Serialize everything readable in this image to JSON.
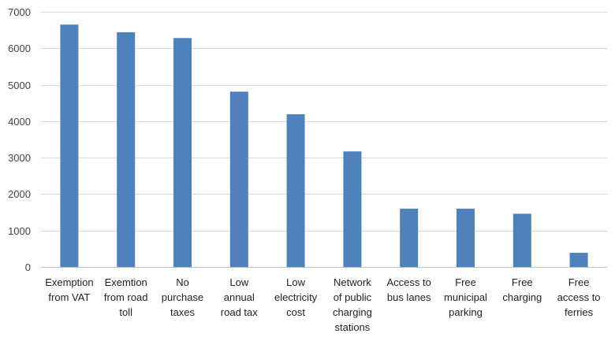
{
  "chart_data": {
    "type": "bar",
    "title": "",
    "xlabel": "",
    "ylabel": "",
    "ylim": [
      0,
      7000
    ],
    "yticks": [
      0,
      1000,
      2000,
      3000,
      4000,
      5000,
      6000,
      7000
    ],
    "grid": true,
    "bar_color": "#4f81bd",
    "categories": [
      [
        "Exemption",
        "from VAT"
      ],
      [
        "Exemtion",
        "from road",
        "toll"
      ],
      [
        "No",
        "purchase",
        "taxes"
      ],
      [
        "Low",
        "annual",
        "road tax"
      ],
      [
        "Low",
        "electricity",
        "cost"
      ],
      [
        "Network",
        "of public",
        "charging",
        "stations"
      ],
      [
        "Access to",
        "bus lanes"
      ],
      [
        "Free",
        "municipal",
        "parking"
      ],
      [
        "Free",
        "charging"
      ],
      [
        "Free",
        "access to",
        "ferries"
      ]
    ],
    "values": [
      6650,
      6440,
      6280,
      4810,
      4190,
      3170,
      1600,
      1600,
      1460,
      390
    ]
  }
}
